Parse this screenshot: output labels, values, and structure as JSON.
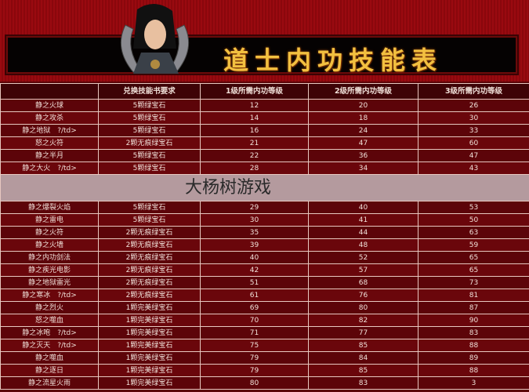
{
  "header": {
    "title": "道士内功技能表"
  },
  "table": {
    "columns": [
      "",
      "兑换技能书要求",
      "1级所需内功等级",
      "2级所需内功等级",
      "3级所需内功等级"
    ],
    "rows": [
      [
        "静之火球",
        "5颗绿宝石",
        "12",
        "20",
        "26"
      ],
      [
        "静之攻杀",
        "5颗绿宝石",
        "14",
        "18",
        "30"
      ],
      [
        "静之地狱　?/td>",
        "5颗绿宝石",
        "16",
        "24",
        "33"
      ],
      [
        "怒之火符",
        "2颗无痕绿宝石",
        "21",
        "47",
        "60"
      ],
      [
        "静之半月",
        "5颗绿宝石",
        "22",
        "36",
        "47"
      ],
      [
        "静之大火　?/td>",
        "5颗绿宝石",
        "28",
        "34",
        "43"
      ],
      [
        "静之爆裂火焰",
        "5颗绿宝石",
        "29",
        "40",
        "53"
      ],
      [
        "静之雷电",
        "5颗绿宝石",
        "30",
        "41",
        "50"
      ],
      [
        "静之火符",
        "2颗无痕绿宝石",
        "35",
        "44",
        "63"
      ],
      [
        "静之火墙",
        "2颗无痕绿宝石",
        "39",
        "48",
        "59"
      ],
      [
        "静之内功剑法",
        "2颗无痕绿宝石",
        "40",
        "52",
        "65"
      ],
      [
        "静之疾光电影",
        "2颗无痕绿宝石",
        "42",
        "57",
        "65"
      ],
      [
        "静之地狱雷光",
        "2颗无痕绿宝石",
        "51",
        "68",
        "73"
      ],
      [
        "静之寒冰　?/td>",
        "2颗无痕绿宝石",
        "61",
        "76",
        "81"
      ],
      [
        "静之烈火",
        "1颗完美绿宝石",
        "69",
        "80",
        "87"
      ],
      [
        "怒之噬血",
        "1颗完美绿宝石",
        "70",
        "82",
        "90"
      ],
      [
        "静之冰咆　?/td>",
        "1颗完美绿宝石",
        "71",
        "77",
        "83"
      ],
      [
        "静之灭天　?/td>",
        "1颗完美绿宝石",
        "75",
        "85",
        "88"
      ],
      [
        "静之噬血",
        "1颗完美绿宝石",
        "79",
        "84",
        "89"
      ],
      [
        "静之逐日",
        "1颗完美绿宝石",
        "79",
        "85",
        "88"
      ],
      [
        "静之流星火雨",
        "1颗完美绿宝石",
        "80",
        "83",
        "3"
      ]
    ]
  },
  "watermark": {
    "text": "大杨树游戏"
  }
}
